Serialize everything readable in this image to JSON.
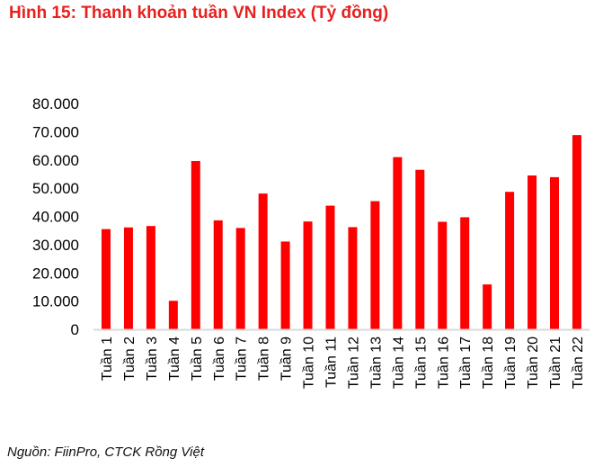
{
  "title": "Hình 15: Thanh khoản tuần VN Index (Tỷ đồng)",
  "source": "Nguồn: FiinPro, CTCK Rồng Việt",
  "colors": {
    "title": "#e8201e",
    "bar": "#ff0000",
    "axis": "#d9d9d9"
  },
  "chart_data": {
    "type": "bar",
    "title": "Hình 15: Thanh khoản tuần VN Index (Tỷ đồng)",
    "xlabel": "",
    "ylabel": "",
    "ylim": [
      0,
      80000
    ],
    "grid": false,
    "legend": "none",
    "yticks": [
      "0",
      "10.000",
      "20.000",
      "30.000",
      "40.000",
      "50.000",
      "60.000",
      "70.000",
      "80.000"
    ],
    "categories": [
      "Tuần 1",
      "Tuần 2",
      "Tuần 3",
      "Tuần 4",
      "Tuần 5",
      "Tuần 6",
      "Tuần 7",
      "Tuần 8",
      "Tuần 9",
      "Tuần 10",
      "Tuần 11",
      "Tuần 12",
      "Tuần 13",
      "Tuần 14",
      "Tuần 15",
      "Tuần 16",
      "Tuần 17",
      "Tuần 18",
      "Tuần 19",
      "Tuần 20",
      "Tuần 21",
      "Tuần 22"
    ],
    "values": [
      35500,
      36100,
      36600,
      10100,
      59600,
      38600,
      35900,
      48100,
      31100,
      38200,
      43800,
      36200,
      45400,
      61000,
      56500,
      38100,
      39700,
      15900,
      48700,
      54500,
      53900,
      68800
    ]
  }
}
